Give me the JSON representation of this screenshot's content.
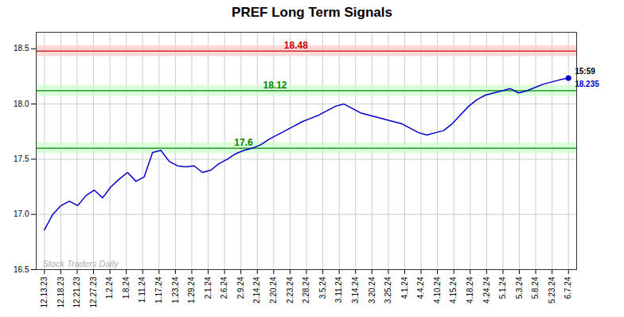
{
  "chart_data": {
    "type": "line",
    "title": "PREF Long Term Signals",
    "x": [
      0,
      0.507937,
      1.015873,
      1.52381,
      2.031746,
      2.539683,
      3.047619,
      3.555556,
      4.063492,
      4.571429,
      5.079365,
      5.587302,
      6.095238,
      6.603175,
      7.111111,
      7.619048,
      8.126984,
      8.634921,
      9.142857,
      9.650794,
      10.15873,
      10.666667,
      11.174603,
      11.68254,
      12.190476,
      12.698413,
      13.206349,
      13.714286,
      14.222222,
      14.730159,
      15.238095,
      15.746032,
      16.253968,
      16.761905,
      17.269841,
      17.777778,
      18.285714,
      18.793651,
      19.301587,
      19.809524,
      20.31746,
      20.825397,
      21.333333,
      21.84127,
      22.349206,
      22.857143,
      23.365079,
      23.873016,
      24.380952,
      24.888889,
      25.396825,
      25.904762,
      26.412698,
      26.920635,
      27.428571,
      27.936508,
      28.444444,
      28.952381,
      29.460317,
      29.968254,
      30.47619,
      30.984127,
      31.492063,
      32
    ],
    "series": [
      {
        "name": "PREF",
        "color": "#0000cc",
        "values": [
          16.86,
          17.0,
          17.08,
          17.12,
          17.08,
          17.17,
          17.22,
          17.15,
          17.25,
          17.32,
          17.38,
          17.3,
          17.34,
          17.56,
          17.58,
          17.48,
          17.44,
          17.43,
          17.44,
          17.38,
          17.4,
          17.46,
          17.5,
          17.55,
          17.58,
          17.6,
          17.63,
          17.68,
          17.72,
          17.76,
          17.8,
          17.84,
          17.87,
          17.9,
          17.94,
          17.98,
          18.0,
          17.96,
          17.92,
          17.9,
          17.88,
          17.86,
          17.84,
          17.82,
          17.78,
          17.74,
          17.72,
          17.74,
          17.76,
          17.82,
          17.9,
          17.98,
          18.04,
          18.08,
          18.1,
          18.12,
          18.14,
          18.1,
          18.12,
          18.15,
          18.18,
          18.2,
          18.22,
          18.235
        ]
      }
    ],
    "xlim": [
      -0.5,
      32.5
    ],
    "xticks": [
      {
        "value": 0,
        "label": "12.13.23"
      },
      {
        "value": 1,
        "label": "12.18.23"
      },
      {
        "value": 2,
        "label": "12.21.23"
      },
      {
        "value": 3,
        "label": "12.27.23"
      },
      {
        "value": 4,
        "label": "1.2.24"
      },
      {
        "value": 5,
        "label": "1.8.24"
      },
      {
        "value": 6,
        "label": "1.11.24"
      },
      {
        "value": 7,
        "label": "1.17.24"
      },
      {
        "value": 8,
        "label": "1.23.24"
      },
      {
        "value": 9,
        "label": "1.29.24"
      },
      {
        "value": 10,
        "label": "2.1.24"
      },
      {
        "value": 11,
        "label": "2.6.24"
      },
      {
        "value": 12,
        "label": "2.9.24"
      },
      {
        "value": 13,
        "label": "2.14.24"
      },
      {
        "value": 14,
        "label": "2.20.24"
      },
      {
        "value": 15,
        "label": "2.23.24"
      },
      {
        "value": 16,
        "label": "2.28.24"
      },
      {
        "value": 17,
        "label": "3.5.24"
      },
      {
        "value": 18,
        "label": "3.11.24"
      },
      {
        "value": 19,
        "label": "3.14.24"
      },
      {
        "value": 20,
        "label": "3.20.24"
      },
      {
        "value": 21,
        "label": "3.25.24"
      },
      {
        "value": 22,
        "label": "4.1.24"
      },
      {
        "value": 23,
        "label": "4.4.24"
      },
      {
        "value": 24,
        "label": "4.10.24"
      },
      {
        "value": 25,
        "label": "4.15.24"
      },
      {
        "value": 26,
        "label": "4.18.24"
      },
      {
        "value": 27,
        "label": "4.24.24"
      },
      {
        "value": 28,
        "label": "5.1.24"
      },
      {
        "value": 29,
        "label": "5.3.24"
      },
      {
        "value": 30,
        "label": "5.8.24"
      },
      {
        "value": 31,
        "label": "5.23.24"
      },
      {
        "value": 32,
        "label": "6.7.24"
      }
    ],
    "ylim": [
      16.5,
      18.65
    ],
    "yticks": [
      16.5,
      {
        "value": 17.0,
        "label": "17.0"
      },
      17.5,
      {
        "value": 18.0,
        "label": "18.0"
      },
      18.5
    ],
    "grid": true,
    "annotations": [
      {
        "text": "18.48",
        "y": 18.48,
        "band": [
          18.43,
          18.53
        ],
        "color": "#cc0000",
        "band_color": "#ffcccc"
      },
      {
        "text": "18.12",
        "y": 18.12,
        "band": [
          18.07,
          18.17
        ],
        "color": "#008800",
        "band_color": "#ccffcc"
      },
      {
        "text": "17.6",
        "y": 17.6,
        "band": [
          17.55,
          17.65
        ],
        "color": "#008800",
        "band_color": "#ccffcc"
      },
      {
        "text": "15:59",
        "color": "#000000"
      },
      {
        "text": "18.235",
        "color": "#0000cc"
      },
      {
        "text": "Stock Traders Daily",
        "color": "#b0b0b0"
      }
    ]
  }
}
